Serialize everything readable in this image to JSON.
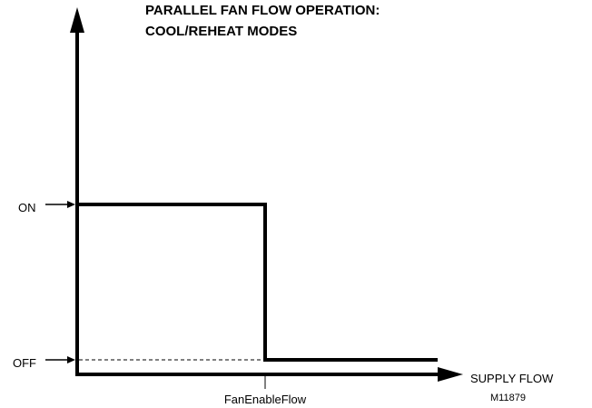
{
  "title": {
    "line1": "PARALLEL FAN FLOW OPERATION:",
    "line2": "COOL/REHEAT MODES"
  },
  "y_axis": {
    "on_label": "ON",
    "off_label": "OFF"
  },
  "x_axis": {
    "label": "SUPPLY FLOW",
    "tick_label": "FanEnableFlow"
  },
  "figure_id": "M11879"
}
